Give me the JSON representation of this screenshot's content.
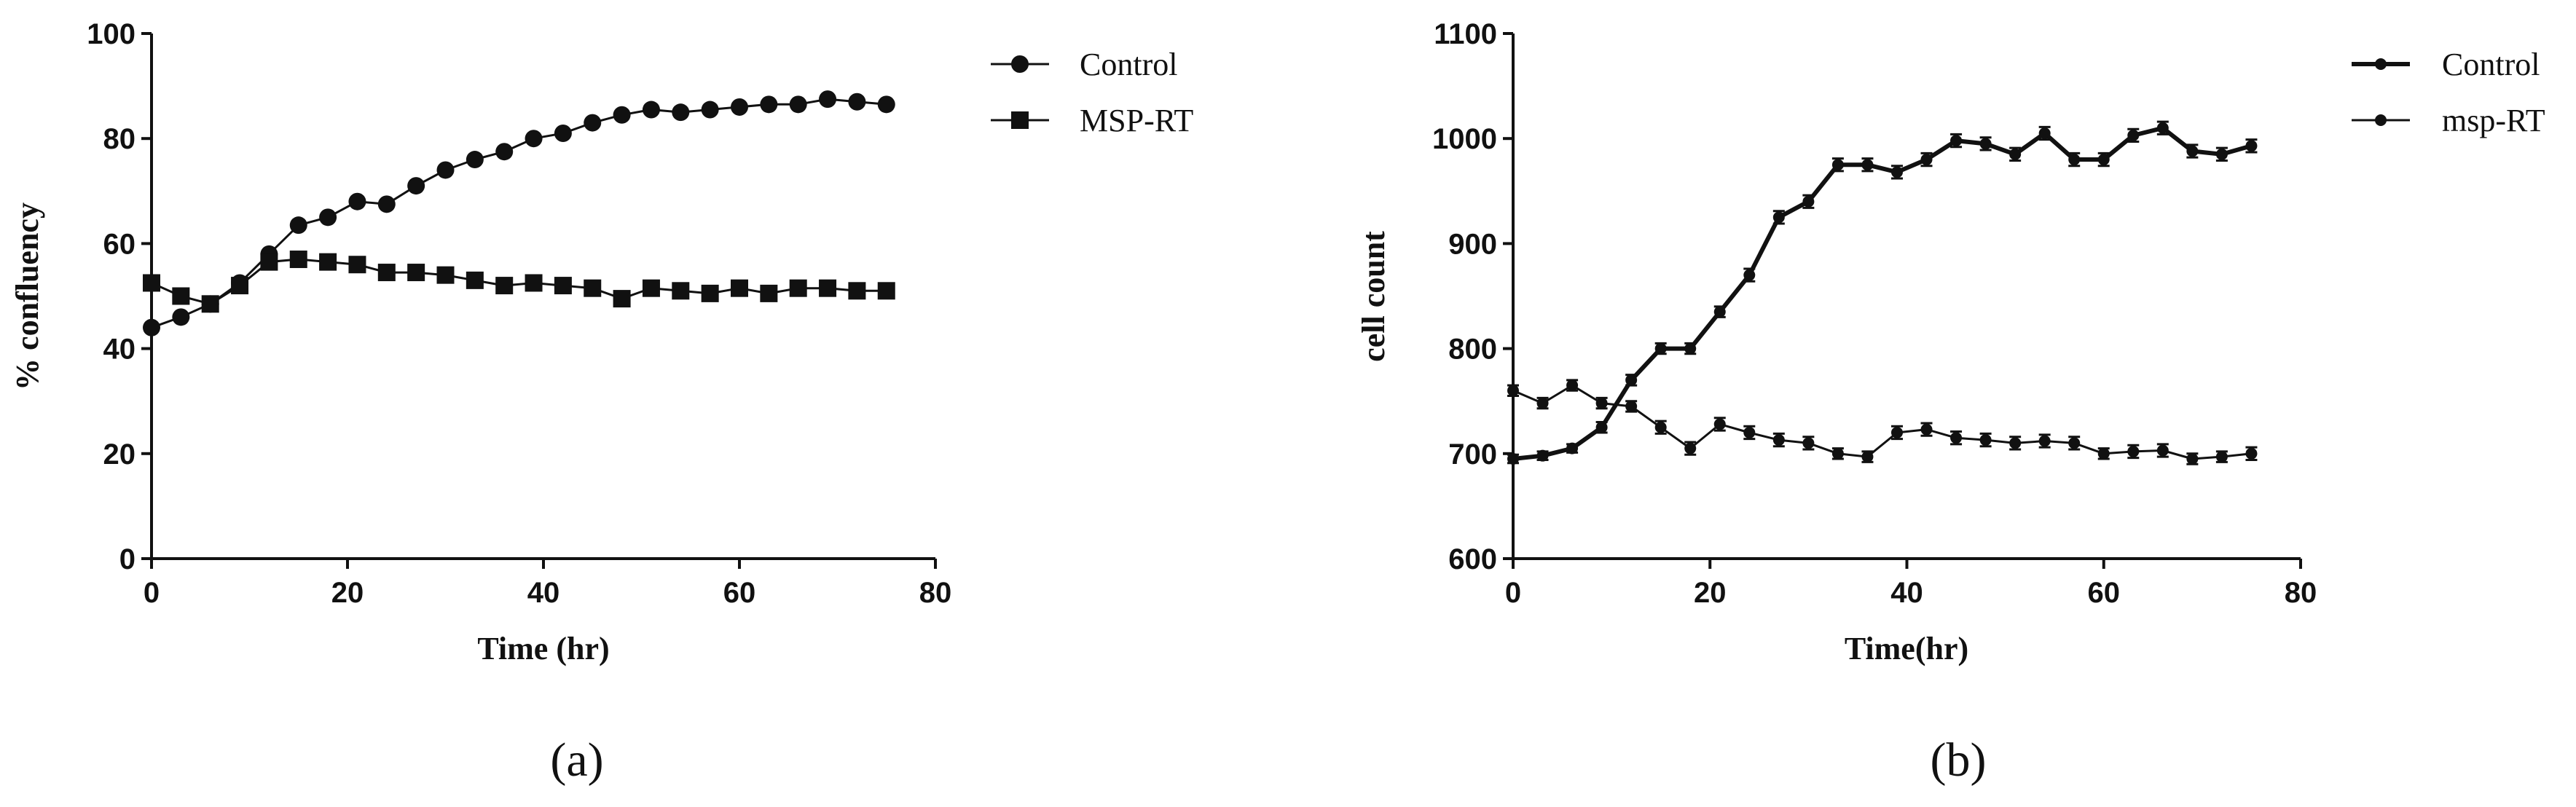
{
  "chart_data": [
    {
      "type": "line",
      "panel_label": "(a)",
      "title": "",
      "xlabel": "Time (hr)",
      "ylabel": "% confluency",
      "xlim": [
        0,
        80
      ],
      "ylim": [
        0,
        100
      ],
      "xticks": [
        "0",
        "20",
        "40",
        "60",
        "80"
      ],
      "yticks": [
        "0",
        "20",
        "40",
        "60",
        "80",
        "100"
      ],
      "legend_position": "top-right",
      "grid": false,
      "x": [
        0,
        3,
        6,
        9,
        12,
        15,
        18,
        21,
        24,
        27,
        30,
        33,
        36,
        39,
        42,
        45,
        48,
        51,
        54,
        57,
        60,
        63,
        66,
        69,
        72,
        75
      ],
      "series": [
        {
          "name": "Control",
          "marker": "circle",
          "values": [
            44,
            46,
            48.5,
            52.5,
            58,
            63.5,
            65,
            68,
            67.5,
            71,
            74,
            76,
            77.5,
            80,
            81,
            83,
            84.5,
            85.5,
            85,
            85.5,
            86,
            86.5,
            86.5,
            87.5,
            87,
            86.5
          ]
        },
        {
          "name": "MSP-RT",
          "marker": "square",
          "values": [
            52.5,
            50,
            48.5,
            52,
            56.5,
            57,
            56.5,
            56,
            54.5,
            54.5,
            54,
            53,
            52,
            52.5,
            52,
            51.5,
            49.5,
            51.5,
            51,
            50.5,
            51.5,
            50.5,
            51.5,
            51.5,
            51,
            51
          ]
        }
      ]
    },
    {
      "type": "line",
      "panel_label": "(b)",
      "title": "",
      "xlabel": "Time(hr)",
      "ylabel": "cell count",
      "xlim": [
        0,
        80
      ],
      "ylim": [
        600,
        1100
      ],
      "xticks": [
        "0",
        "20",
        "40",
        "60",
        "80"
      ],
      "yticks": [
        "600",
        "700",
        "800",
        "900",
        "1000",
        "1100"
      ],
      "legend_position": "top-right",
      "grid": false,
      "error_bars": true,
      "x": [
        0,
        3,
        6,
        9,
        12,
        15,
        18,
        21,
        24,
        27,
        30,
        33,
        36,
        39,
        42,
        45,
        48,
        51,
        54,
        57,
        60,
        63,
        66,
        69,
        72,
        75
      ],
      "series": [
        {
          "name": "Control",
          "marker": "dot",
          "values": [
            695,
            698,
            705,
            725,
            770,
            800,
            800,
            835,
            870,
            925,
            940,
            975,
            975,
            968,
            980,
            998,
            995,
            985,
            1005,
            980,
            980,
            1003,
            1010,
            988,
            985,
            993
          ],
          "errors": [
            4,
            4,
            4,
            5,
            5,
            5,
            5,
            5,
            6,
            6,
            6,
            6,
            6,
            6,
            6,
            6,
            6,
            6,
            6,
            6,
            6,
            6,
            6,
            6,
            6,
            6
          ]
        },
        {
          "name": "msp-RT",
          "marker": "dot",
          "values": [
            760,
            748,
            765,
            748,
            745,
            725,
            705,
            728,
            720,
            713,
            710,
            700,
            697,
            720,
            723,
            715,
            713,
            710,
            712,
            710,
            700,
            702,
            703,
            695,
            697,
            700
          ],
          "errors": [
            5,
            5,
            5,
            5,
            5,
            6,
            6,
            6,
            6,
            6,
            6,
            5,
            5,
            6,
            6,
            6,
            6,
            6,
            6,
            6,
            5,
            6,
            6,
            5,
            5,
            6
          ]
        }
      ]
    }
  ]
}
